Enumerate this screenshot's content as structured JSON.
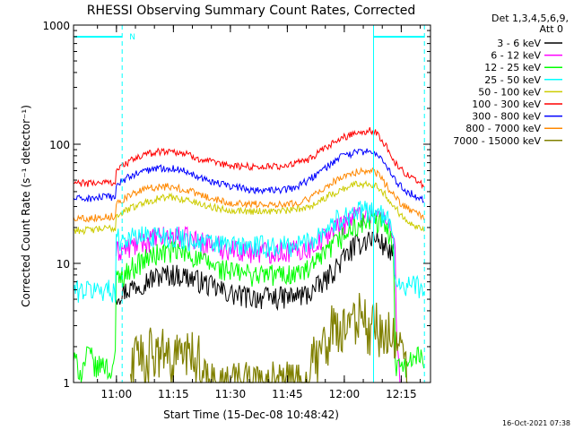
{
  "chart_data": {
    "type": "line",
    "title": "RHESSI Observing Summary Count Rates, Corrected",
    "xlabel": "Start Time (15-Dec-08 10:48:42)",
    "ylabel": "Corrected Count Rate (s⁻¹ detector⁻¹)",
    "yscale": "log",
    "ylim": [
      1,
      1000
    ],
    "xlim_minutes_after_10_48_42": [
      0,
      94
    ],
    "x_tick_labels": [
      "11:00",
      "11:15",
      "11:30",
      "11:45",
      "12:00",
      "12:15"
    ],
    "x_tick_minutes_after_10_48_42": [
      11.3,
      26.3,
      41.3,
      56.3,
      71.3,
      86.3
    ],
    "y_tick_labels": [
      "1",
      "10",
      "100",
      "1000"
    ],
    "y_tick_values": [
      1,
      10,
      100,
      1000
    ],
    "legend": {
      "header": [
        "Det 1,3,4,5,6,9,",
        "Att 0"
      ],
      "placement": "outside-right"
    },
    "footer_date": "16-Oct-2021 07:38",
    "flag_label": "N",
    "time_markers_minutes": [
      12.8,
      79.0,
      92.4
    ],
    "series": [
      {
        "name": "3 - 6 keV",
        "color": "#000000",
        "x": [
          11.2,
          14,
          18,
          22,
          26,
          30,
          34,
          38,
          42,
          46,
          50,
          54,
          58,
          62,
          66,
          70,
          74,
          78,
          80,
          82,
          84.2
        ],
        "y": [
          5.5,
          6.0,
          7.0,
          7.8,
          8.2,
          7.8,
          7.0,
          6.1,
          5.5,
          5.3,
          5.2,
          5.2,
          5.3,
          5.6,
          7.0,
          10.0,
          14.0,
          16.5,
          16.0,
          14.0,
          12.0
        ]
      },
      {
        "name": "6 - 12 keV",
        "color": "#ff00ff",
        "x": [
          11.2,
          14,
          18,
          22,
          26,
          30,
          34,
          38,
          42,
          46,
          50,
          54,
          58,
          62,
          66,
          70,
          74,
          78,
          80,
          82,
          84.5,
          85,
          86
        ],
        "y": [
          12.5,
          13.5,
          15.0,
          16.5,
          17.0,
          16.5,
          15.2,
          14.0,
          13.2,
          12.8,
          12.7,
          12.7,
          12.8,
          13.5,
          16.5,
          21.0,
          25.0,
          27.0,
          26.0,
          23.0,
          19.0,
          2.0,
          1.0
        ]
      },
      {
        "name": "12 - 25 keV",
        "color": "#00ff00",
        "x": [
          0,
          2,
          4,
          6,
          8,
          9.5,
          11,
          11.2,
          14,
          18,
          22,
          26,
          30,
          34,
          38,
          42,
          46,
          50,
          54,
          58,
          62,
          66,
          70,
          74,
          78,
          80,
          82,
          84.2,
          84.6,
          86,
          88,
          90,
          92.4
        ],
        "y": [
          1.6,
          1.2,
          1.8,
          1.3,
          1.5,
          1.2,
          1.6,
          7.5,
          8.5,
          10.5,
          12.0,
          12.8,
          12.0,
          10.5,
          9.2,
          8.5,
          8.2,
          8.1,
          8.1,
          8.2,
          8.8,
          11.5,
          16.0,
          20.0,
          23.0,
          22.5,
          20.0,
          16.0,
          1.2,
          1.7,
          1.3,
          1.8,
          1.4
        ]
      },
      {
        "name": "25 - 50 keV",
        "color": "#00ffff",
        "x": [
          0,
          4,
          8,
          11,
          11.2,
          14,
          18,
          22,
          26,
          30,
          34,
          38,
          42,
          46,
          50,
          54,
          58,
          62,
          66,
          70,
          74,
          78,
          80,
          82,
          84.2,
          84.6,
          86,
          88,
          90,
          92.4
        ],
        "y": [
          6.0,
          6.0,
          6.1,
          6.0,
          16.0,
          16.5,
          17.0,
          17.5,
          17.0,
          16.0,
          15.0,
          14.5,
          14.2,
          14.0,
          14.0,
          14.0,
          14.2,
          15.5,
          19.0,
          24.0,
          27.0,
          28.0,
          27.0,
          24.0,
          20.0,
          7.0,
          6.8,
          6.6,
          6.5,
          6.3
        ]
      },
      {
        "name": "50 - 100 keV",
        "color": "#cccc00",
        "x": [
          0,
          4,
          8,
          11,
          11.2,
          14,
          18,
          22,
          26,
          30,
          34,
          38,
          42,
          46,
          50,
          54,
          58,
          62,
          66,
          70,
          74,
          78,
          80,
          82,
          84,
          86,
          88,
          90,
          92.4
        ],
        "y": [
          19.0,
          19.0,
          19.5,
          19.8,
          25.0,
          28.0,
          32.0,
          35.0,
          36.0,
          34.0,
          31.0,
          29.0,
          28.0,
          27.5,
          27.5,
          27.5,
          28.0,
          30.0,
          35.0,
          41.0,
          46.0,
          47.0,
          45.0,
          38.0,
          31.0,
          26.0,
          23.0,
          21.0,
          19.0
        ]
      },
      {
        "name": "100 - 300 keV",
        "color": "#ff0000",
        "x": [
          0,
          4,
          8,
          11,
          11.2,
          14,
          18,
          22,
          26,
          30,
          34,
          38,
          42,
          46,
          50,
          54,
          58,
          62,
          66,
          70,
          74,
          78,
          80,
          82,
          84,
          86,
          88,
          90,
          92.4
        ],
        "y": [
          47.0,
          47.0,
          48.0,
          48.0,
          60.0,
          70.0,
          80.0,
          87.0,
          88.0,
          82.0,
          74.0,
          68.0,
          66.0,
          65.0,
          65.0,
          65.0,
          68.0,
          75.0,
          90.0,
          110.0,
          125.0,
          130.0,
          123.0,
          100.0,
          75.0,
          62.0,
          55.0,
          50.0,
          45.0
        ]
      },
      {
        "name": "300 - 800 keV",
        "color": "#0000ff",
        "x": [
          0,
          4,
          8,
          11,
          11.2,
          14,
          18,
          22,
          26,
          30,
          34,
          38,
          42,
          46,
          50,
          54,
          58,
          62,
          66,
          70,
          74,
          78,
          80,
          82,
          84,
          86,
          88,
          90,
          92.4
        ],
        "y": [
          35.0,
          35.0,
          36.0,
          36.0,
          45.0,
          52.0,
          59.0,
          63.0,
          63.0,
          59.0,
          52.0,
          47.0,
          44.0,
          42.0,
          41.0,
          41.0,
          43.0,
          50.0,
          62.0,
          77.0,
          85.0,
          87.0,
          83.0,
          68.0,
          53.0,
          45.0,
          40.0,
          37.0,
          34.0
        ]
      },
      {
        "name": "800 - 7000 keV",
        "color": "#ff8800",
        "x": [
          0,
          4,
          8,
          11,
          11.2,
          14,
          18,
          22,
          26,
          30,
          34,
          38,
          42,
          46,
          50,
          54,
          58,
          62,
          66,
          70,
          74,
          78,
          80,
          82,
          84,
          86,
          88,
          90,
          92.4
        ],
        "y": [
          24.0,
          24.0,
          24.5,
          25.0,
          32.0,
          36.0,
          41.0,
          44.0,
          44.0,
          41.0,
          37.0,
          34.0,
          32.0,
          31.5,
          31.5,
          31.5,
          32.0,
          35.0,
          42.0,
          52.0,
          58.0,
          60.0,
          57.0,
          47.0,
          38.0,
          32.0,
          29.0,
          27.0,
          24.0
        ]
      },
      {
        "name": "7000 - 15000 keV",
        "color": "#808000",
        "x": [
          15,
          16,
          17,
          18,
          19,
          20,
          22,
          24,
          26,
          28,
          29,
          31,
          32,
          33,
          34,
          35,
          50,
          62,
          63,
          64,
          66,
          68,
          70,
          72,
          74,
          76,
          78,
          80,
          82,
          84,
          86,
          88
        ],
        "y": [
          1.0,
          2.0,
          1.5,
          2.0,
          1.2,
          2.0,
          1.6,
          2.0,
          1.3,
          2.0,
          1.5,
          2.0,
          1.2,
          2.0,
          1.1,
          1.0,
          1.0,
          1.0,
          2.0,
          1.5,
          2.0,
          3.0,
          2.5,
          3.0,
          3.5,
          4.0,
          3.0,
          3.5,
          2.5,
          3.0,
          2.0,
          1.0
        ]
      }
    ]
  }
}
